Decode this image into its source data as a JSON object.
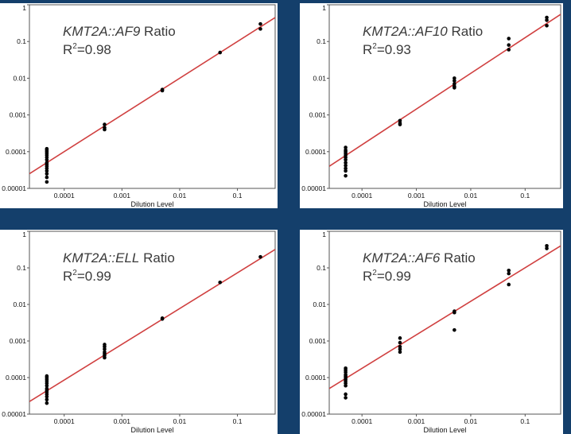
{
  "chart_data": [
    {
      "type": "scatter",
      "title_gene": "KMT2A::AF9",
      "title_suffix": "Ratio",
      "r2_prefix": "R",
      "r2_value": "=0.98",
      "xlabel": "Dilution Level",
      "xscale": "log",
      "yscale": "log",
      "xlim": [
        2.5e-05,
        0.45
      ],
      "ylim": [
        1e-05,
        1
      ],
      "xticks": [
        "0.0001",
        "0.001",
        "0.01",
        "0.1"
      ],
      "yticks": [
        "0.00001",
        "0.0001",
        "0.001",
        "0.01",
        "0.1",
        "1"
      ],
      "fit_line": {
        "x": [
          2.5e-05,
          0.45
        ],
        "y": [
          2.5e-05,
          0.45
        ],
        "color": "#d04040"
      },
      "points": [
        [
          5e-05,
          0.00012
        ],
        [
          5e-05,
          0.00011
        ],
        [
          5e-05,
          0.0001
        ],
        [
          5e-05,
          9e-05
        ],
        [
          5e-05,
          8e-05
        ],
        [
          5e-05,
          7e-05
        ],
        [
          5e-05,
          6e-05
        ],
        [
          5e-05,
          5e-05
        ],
        [
          5e-05,
          4.5e-05
        ],
        [
          5e-05,
          4e-05
        ],
        [
          5e-05,
          3.5e-05
        ],
        [
          5e-05,
          3e-05
        ],
        [
          5e-05,
          2.5e-05
        ],
        [
          5e-05,
          2e-05
        ],
        [
          5e-05,
          1.5e-05
        ],
        [
          0.0005,
          0.00055
        ],
        [
          0.0005,
          0.00045
        ],
        [
          0.0005,
          0.0004
        ],
        [
          0.005,
          0.0049
        ],
        [
          0.005,
          0.0046
        ],
        [
          0.05,
          0.05
        ],
        [
          0.25,
          0.3
        ],
        [
          0.25,
          0.22
        ]
      ],
      "point_color": "#000000"
    },
    {
      "type": "scatter",
      "title_gene": "KMT2A::AF10",
      "title_suffix": "Ratio",
      "r2_prefix": "R",
      "r2_value": "=0.93",
      "xlabel": "Dilution Level",
      "xscale": "log",
      "yscale": "log",
      "xlim": [
        2.5e-05,
        0.45
      ],
      "ylim": [
        1e-05,
        1
      ],
      "xticks": [
        "0.0001",
        "0.001",
        "0.01",
        "0.1"
      ],
      "yticks": [
        "0.00001",
        "0.0001",
        "0.001",
        "0.01",
        "0.1",
        "1"
      ],
      "fit_line": {
        "x": [
          2.5e-05,
          0.45
        ],
        "y": [
          4e-05,
          0.55
        ],
        "color": "#d04040"
      },
      "points": [
        [
          5e-05,
          0.00013
        ],
        [
          5e-05,
          0.00011
        ],
        [
          5e-05,
          0.0001
        ],
        [
          5e-05,
          9e-05
        ],
        [
          5e-05,
          8e-05
        ],
        [
          5e-05,
          7e-05
        ],
        [
          5e-05,
          6e-05
        ],
        [
          5e-05,
          5e-05
        ],
        [
          5e-05,
          4.2e-05
        ],
        [
          5e-05,
          3.5e-05
        ],
        [
          5e-05,
          3e-05
        ],
        [
          5e-05,
          2.2e-05
        ],
        [
          0.0005,
          0.0007
        ],
        [
          0.0005,
          0.0006
        ],
        [
          0.0005,
          0.00055
        ],
        [
          0.005,
          0.01
        ],
        [
          0.005,
          0.0085
        ],
        [
          0.005,
          0.007
        ],
        [
          0.005,
          0.006
        ],
        [
          0.005,
          0.0055
        ],
        [
          0.05,
          0.12
        ],
        [
          0.05,
          0.08
        ],
        [
          0.05,
          0.06
        ],
        [
          0.25,
          0.45
        ],
        [
          0.25,
          0.38
        ],
        [
          0.25,
          0.27
        ]
      ],
      "point_color": "#000000"
    },
    {
      "type": "scatter",
      "title_gene": "KMT2A::ELL",
      "title_suffix": "Ratio",
      "r2_prefix": "R",
      "r2_value": "=0.99",
      "xlabel": "Dilution Level",
      "xscale": "log",
      "yscale": "log",
      "xlim": [
        2.5e-05,
        0.45
      ],
      "ylim": [
        1e-05,
        1
      ],
      "xticks": [
        "0.0001",
        "0.001",
        "0.01",
        "0.1"
      ],
      "yticks": [
        "0.00001",
        "0.0001",
        "0.001",
        "0.01",
        "0.1",
        "1"
      ],
      "fit_line": {
        "x": [
          2.5e-05,
          0.45
        ],
        "y": [
          2.2e-05,
          0.32
        ],
        "color": "#d04040"
      },
      "points": [
        [
          5e-05,
          0.00011
        ],
        [
          5e-05,
          0.0001
        ],
        [
          5e-05,
          9e-05
        ],
        [
          5e-05,
          8e-05
        ],
        [
          5e-05,
          7e-05
        ],
        [
          5e-05,
          6e-05
        ],
        [
          5e-05,
          5e-05
        ],
        [
          5e-05,
          4.5e-05
        ],
        [
          5e-05,
          4e-05
        ],
        [
          5e-05,
          3.5e-05
        ],
        [
          5e-05,
          3e-05
        ],
        [
          5e-05,
          2.5e-05
        ],
        [
          5e-05,
          2e-05
        ],
        [
          0.0005,
          0.0008
        ],
        [
          0.0005,
          0.0007
        ],
        [
          0.0005,
          0.0006
        ],
        [
          0.0005,
          0.0005
        ],
        [
          0.0005,
          0.00045
        ],
        [
          0.0005,
          0.0004
        ],
        [
          0.0005,
          0.00035
        ],
        [
          0.005,
          0.0042
        ],
        [
          0.005,
          0.004
        ],
        [
          0.05,
          0.04
        ],
        [
          0.25,
          0.2
        ]
      ],
      "point_color": "#000000"
    },
    {
      "type": "scatter",
      "title_gene": "KMT2A::AF6",
      "title_suffix": "Ratio",
      "r2_prefix": "R",
      "r2_value": "=0.99",
      "xlabel": "Dilution Level",
      "xscale": "log",
      "yscale": "log",
      "xlim": [
        2.5e-05,
        0.45
      ],
      "ylim": [
        1e-05,
        1
      ],
      "xticks": [
        "0.0001",
        "0.001",
        "0.01",
        "0.1"
      ],
      "yticks": [
        "0.00001",
        "0.0001",
        "0.001",
        "0.01",
        "0.1",
        "1"
      ],
      "fit_line": {
        "x": [
          2.5e-05,
          0.45
        ],
        "y": [
          5e-05,
          0.4
        ],
        "color": "#d04040"
      },
      "points": [
        [
          5e-05,
          0.00018
        ],
        [
          5e-05,
          0.00016
        ],
        [
          5e-05,
          0.00014
        ],
        [
          5e-05,
          0.00012
        ],
        [
          5e-05,
          0.00011
        ],
        [
          5e-05,
          0.0001
        ],
        [
          5e-05,
          9e-05
        ],
        [
          5e-05,
          8e-05
        ],
        [
          5e-05,
          7e-05
        ],
        [
          5e-05,
          6e-05
        ],
        [
          5e-05,
          3.5e-05
        ],
        [
          5e-05,
          2.8e-05
        ],
        [
          0.0005,
          0.0012
        ],
        [
          0.0005,
          0.0009
        ],
        [
          0.0005,
          0.0007
        ],
        [
          0.0005,
          0.0006
        ],
        [
          0.0005,
          0.0005
        ],
        [
          0.005,
          0.0065
        ],
        [
          0.005,
          0.006
        ],
        [
          0.005,
          0.002
        ],
        [
          0.05,
          0.085
        ],
        [
          0.05,
          0.07
        ],
        [
          0.05,
          0.035
        ],
        [
          0.25,
          0.4
        ],
        [
          0.25,
          0.34
        ]
      ],
      "point_color": "#000000"
    }
  ]
}
